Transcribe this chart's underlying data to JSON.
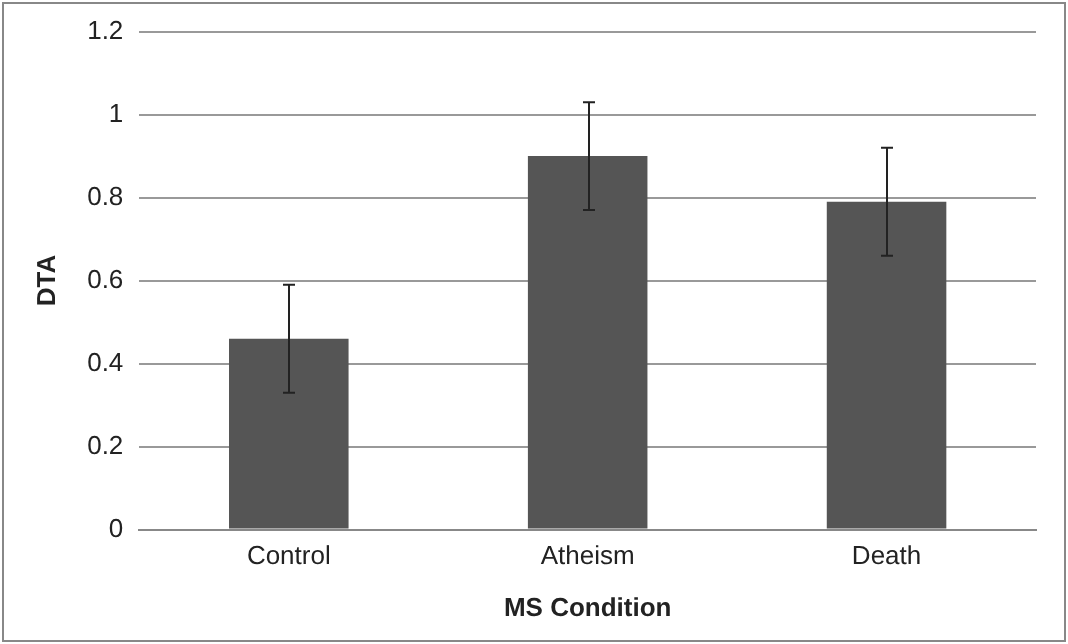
{
  "chart_data": {
    "type": "bar",
    "xlabel": "MS Condition",
    "ylabel": "DTA",
    "categories": [
      "Control",
      "Atheism",
      "Death"
    ],
    "values": [
      0.46,
      0.9,
      0.79
    ],
    "errors": [
      0.13,
      0.13,
      0.13
    ],
    "color": "#555555",
    "ylim": [
      0,
      1.2
    ],
    "yticks": [
      0,
      0.2,
      0.4,
      0.6,
      0.8,
      1,
      1.2
    ],
    "grid": "y",
    "legend": false
  }
}
